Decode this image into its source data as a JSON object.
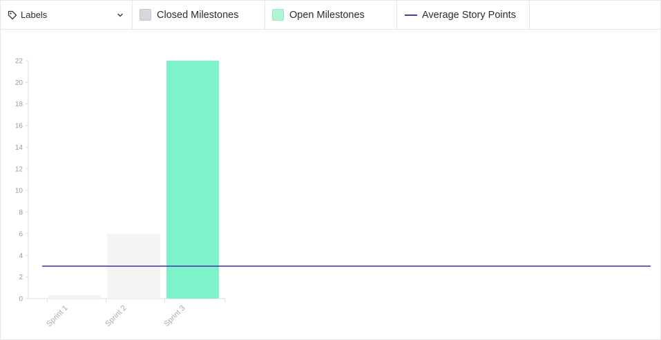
{
  "toolbar": {
    "labels_dropdown": "Labels",
    "closed_legend": "Closed Milestones",
    "open_legend": "Open Milestones",
    "average_legend": "Average Story Points"
  },
  "colors": {
    "closed": "#f4f4f6",
    "open": "#7ef2c9",
    "average_line": "#4a3ca8",
    "axis": "#dddddd"
  },
  "icons": {
    "labels": "tag-icon",
    "dropdown": "chevron-down-icon"
  },
  "chart_data": {
    "type": "bar",
    "categories": [
      "Sprint 1",
      "Sprint 2",
      "Sprint 3"
    ],
    "series": [
      {
        "name": "Closed Milestones",
        "values": [
          0.3,
          6,
          null
        ]
      },
      {
        "name": "Open Milestones",
        "values": [
          null,
          null,
          22
        ]
      }
    ],
    "average": {
      "name": "Average Story Points",
      "value": 3
    },
    "ylim": [
      0,
      22
    ],
    "yticks": [
      0,
      2,
      4,
      6,
      8,
      10,
      12,
      14,
      16,
      18,
      20,
      22
    ],
    "grid": false,
    "legend": "top"
  }
}
